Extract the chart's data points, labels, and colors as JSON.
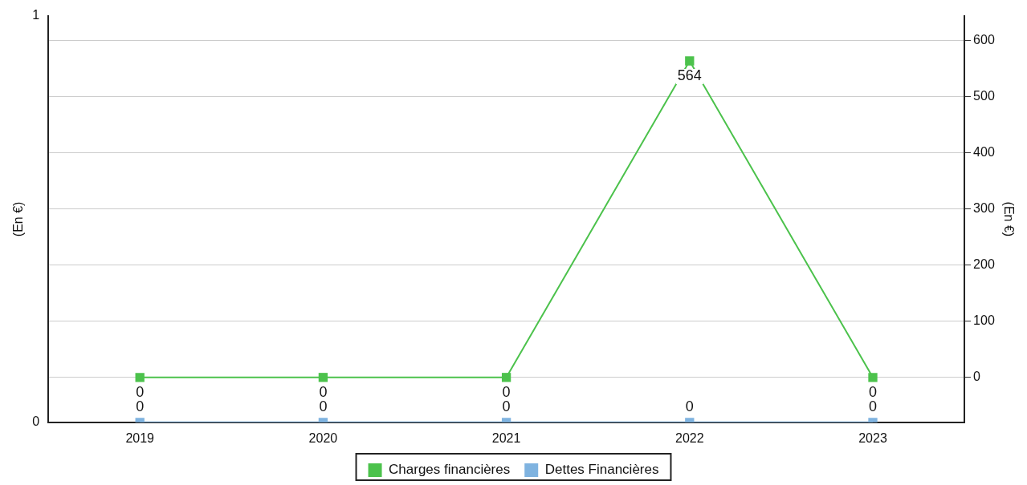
{
  "chart_data": {
    "type": "line",
    "categories": [
      "2019",
      "2020",
      "2021",
      "2022",
      "2023"
    ],
    "series": [
      {
        "name": "Charges financières",
        "color": "#4cc24c",
        "values": [
          0,
          0,
          0,
          564,
          0
        ],
        "axis": "y2"
      },
      {
        "name": "Dettes Financières",
        "color": "#7fb3e0",
        "values": [
          0,
          0,
          0,
          0,
          0
        ],
        "axis": "y"
      }
    ],
    "ylim": [
      0,
      1
    ],
    "yticks": [
      0,
      1
    ],
    "y2lim": [
      -80,
      644
    ],
    "y2ticks": [
      0,
      100,
      200,
      300,
      400,
      500,
      600
    ],
    "ylabel": "(En €)",
    "y2label": "(En €)",
    "grid": "y2",
    "legend": "bottom",
    "marker": "square",
    "data_labels": true
  }
}
